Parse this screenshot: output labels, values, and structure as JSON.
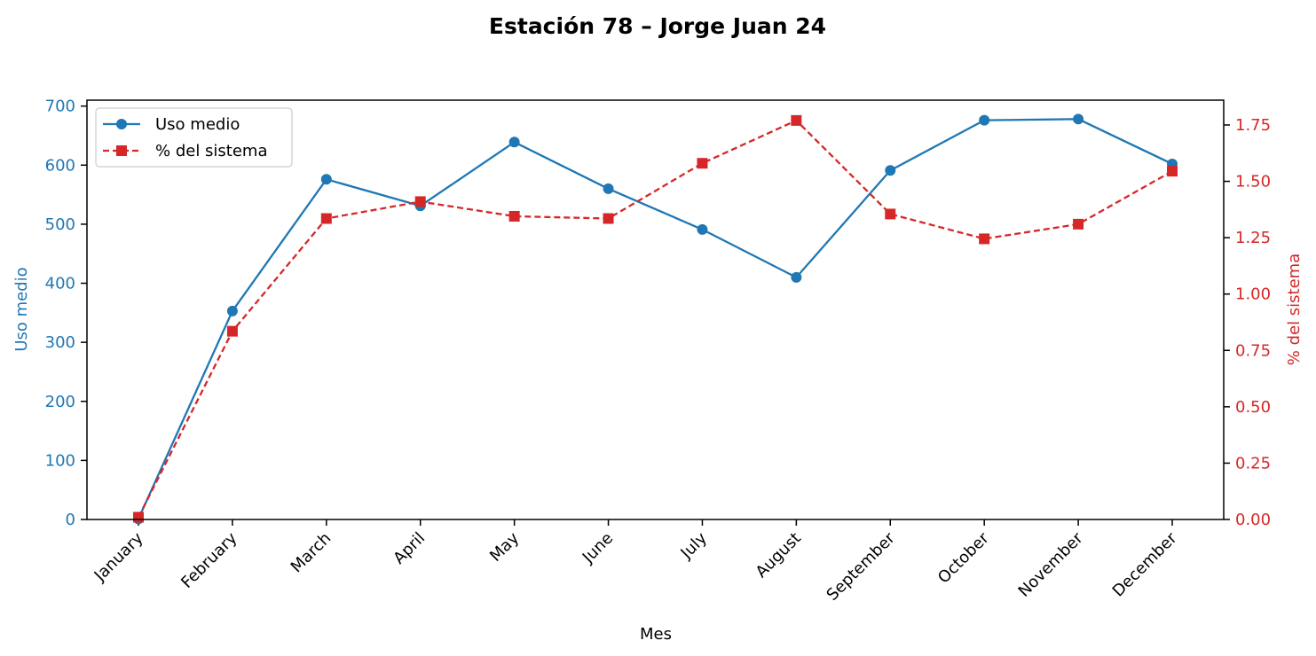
{
  "chart_data": {
    "type": "line",
    "title": "Estación 78 – Jorge Juan 24",
    "xlabel": "Mes",
    "ylabel_left": "Uso medio",
    "ylabel_right": "% del sistema",
    "categories": [
      "January",
      "February",
      "March",
      "April",
      "May",
      "June",
      "July",
      "August",
      "September",
      "October",
      "November",
      "December"
    ],
    "y_left": {
      "lim": [
        0,
        710
      ],
      "ticks": [
        0,
        100,
        200,
        300,
        400,
        500,
        600,
        700
      ]
    },
    "y_right": {
      "lim": [
        0,
        1.86
      ],
      "ticks": [
        0.0,
        0.25,
        0.5,
        0.75,
        1.0,
        1.25,
        1.5,
        1.75
      ],
      "tick_labels": [
        "0.00",
        "0.25",
        "0.50",
        "0.75",
        "1.00",
        "1.25",
        "1.50",
        "1.75"
      ]
    },
    "series": [
      {
        "name": "Uso medio",
        "axis": "left",
        "color": "#1f77b4",
        "style": "solid",
        "marker": "circle",
        "values": [
          1,
          353,
          576,
          531,
          639,
          560,
          491,
          410,
          591,
          676,
          678,
          602
        ]
      },
      {
        "name": "% del sistema",
        "axis": "right",
        "color": "#d62728",
        "style": "dashed",
        "marker": "square",
        "values": [
          0.01,
          0.835,
          1.335,
          1.41,
          1.345,
          1.335,
          1.58,
          1.77,
          1.355,
          1.245,
          1.31,
          1.545
        ]
      }
    ],
    "legend": {
      "position": "top-left"
    },
    "grid": false
  }
}
